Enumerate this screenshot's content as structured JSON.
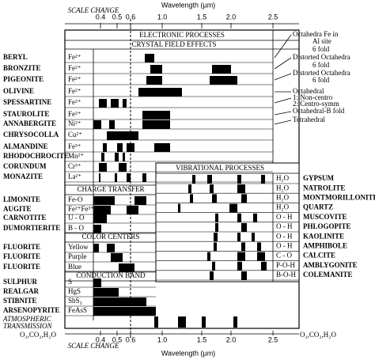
{
  "axis": {
    "title": "Wavelength (µm)",
    "scale_change": "SCALE CHANGE",
    "ticks": [
      "0.4",
      "0.5",
      "0.6",
      "1.0",
      "1.5",
      "2.0",
      "2.5"
    ]
  },
  "sections": {
    "electronic": "ELECTRONIC PROCESSES",
    "crystal_field": "CRYSTAL FIELD EFFECTS",
    "charge_transfer": "CHARGE TRANSFER",
    "color_centers": "COLOR CENTERS",
    "conduction_band": "CONDUCTION BAND",
    "vibrational": "VIBRATIONAL PROCESSES",
    "atmospheric": [
      "ATMOSPHERIC",
      "TRANSMISSION"
    ]
  },
  "rows": [
    {
      "mineral": "BERYL",
      "species": "Fe²⁺"
    },
    {
      "mineral": "BRONZITE",
      "species": "Fe²⁺"
    },
    {
      "mineral": "PIGEONITE",
      "species": "Fe²⁺"
    },
    {
      "mineral": "OLIVINE",
      "species": "Fe²⁺"
    },
    {
      "mineral": "SPESSARTINE",
      "species": "Fe²⁺"
    },
    {
      "mineral": "STAUROLITE",
      "species": "Fe²⁺"
    },
    {
      "mineral": "ANNABERGITE",
      "species": "Ni²⁺"
    },
    {
      "mineral": "CHRYSOCOLLA",
      "species": "Cu²⁺"
    },
    {
      "mineral": "ALMANDINE",
      "species": "Fe³⁺"
    },
    {
      "mineral": "RHODOCHROCITE",
      "species": "Mn²⁺"
    },
    {
      "mineral": "CORUNDUM",
      "species": "Cr³⁺"
    },
    {
      "mineral": "MONAZITE",
      "species": "La²⁺"
    },
    {
      "mineral": "LIMONITE",
      "species": "Fe-O"
    },
    {
      "mineral": "AUGITE",
      "species": "Fe²⁺Fe³⁺"
    },
    {
      "mineral": "CARNOTITE",
      "species": "U - O"
    },
    {
      "mineral": "DUMORTIERITE",
      "species": "B - O"
    },
    {
      "mineral": "FLUORITE",
      "species": "Yellow"
    },
    {
      "mineral": "FLUORITE",
      "species": "Purple"
    },
    {
      "mineral": "FLUORITE",
      "species": "Blue"
    },
    {
      "mineral": "SULPHUR",
      "species": "S"
    },
    {
      "mineral": "REALGAR",
      "species": "HgS"
    },
    {
      "mineral": "STIBNITE",
      "species": "SbS₃"
    },
    {
      "mineral": "ARSENOPYRITE",
      "species": "FeAsS"
    }
  ],
  "vibrational_rows": [
    {
      "species": "H₂O",
      "mineral": "GYPSUM"
    },
    {
      "species": "H₂O",
      "mineral": "NATROLITE"
    },
    {
      "species": "H₂O",
      "mineral": "MONTMORILLONITE"
    },
    {
      "species": "H₂O",
      "mineral": "QUARTZ"
    },
    {
      "species": "O - H",
      "mineral": "MUSCOVITE"
    },
    {
      "species": "O - H",
      "mineral": "PHLOGOPITE"
    },
    {
      "species": "O - H",
      "mineral": "KAOLINITE"
    },
    {
      "species": "O - H",
      "mineral": "AMPHIBOLE"
    },
    {
      "species": "C - O",
      "mineral": "CALCITE"
    },
    {
      "species": "P-O-H",
      "mineral": "AMBLYGONITE"
    },
    {
      "species": "B-O-H",
      "mineral": "COLEMANITE"
    }
  ],
  "annotations": [
    "Octahedra Fe in",
    "Al site",
    "6 fold",
    "Distorted Octahedra",
    "6 fold",
    "Distorted Octahedra",
    "6 fold",
    "Octahedral",
    "1: Non-centro",
    "2: Centro-symm",
    "Octahedral-B fold",
    "Tetrahedral"
  ],
  "gases": "O₂,CO₂,H₂O"
}
